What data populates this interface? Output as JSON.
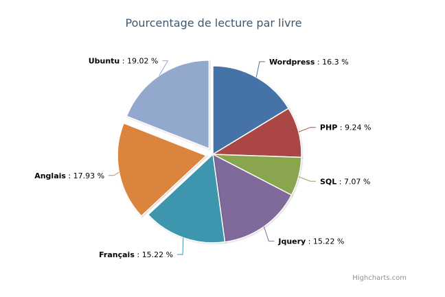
{
  "chart_data": {
    "type": "pie",
    "title": "Pourcentage de lecture par livre",
    "credits": "Highcharts.com",
    "value_suffix": " %",
    "slices": [
      {
        "name": "Wordpress",
        "value": 16.3,
        "color": "#4572A7",
        "sliced": false,
        "label_side": "right"
      },
      {
        "name": "PHP",
        "value": 9.24,
        "color": "#AA4643",
        "sliced": false,
        "label_side": "right"
      },
      {
        "name": "SQL",
        "value": 7.07,
        "color": "#89A54E",
        "sliced": false,
        "label_side": "right"
      },
      {
        "name": "Jquery",
        "value": 15.22,
        "color": "#80699B",
        "sliced": false,
        "label_side": "right"
      },
      {
        "name": "Français",
        "value": 15.22,
        "color": "#3D96AE",
        "sliced": false,
        "label_side": "left"
      },
      {
        "name": "Anglais",
        "value": 17.93,
        "color": "#DB843D",
        "sliced": true,
        "label_side": "left"
      },
      {
        "name": "Ubuntu",
        "value": 19.02,
        "color": "#92A8CD",
        "sliced": true,
        "label_side": "left"
      }
    ]
  }
}
